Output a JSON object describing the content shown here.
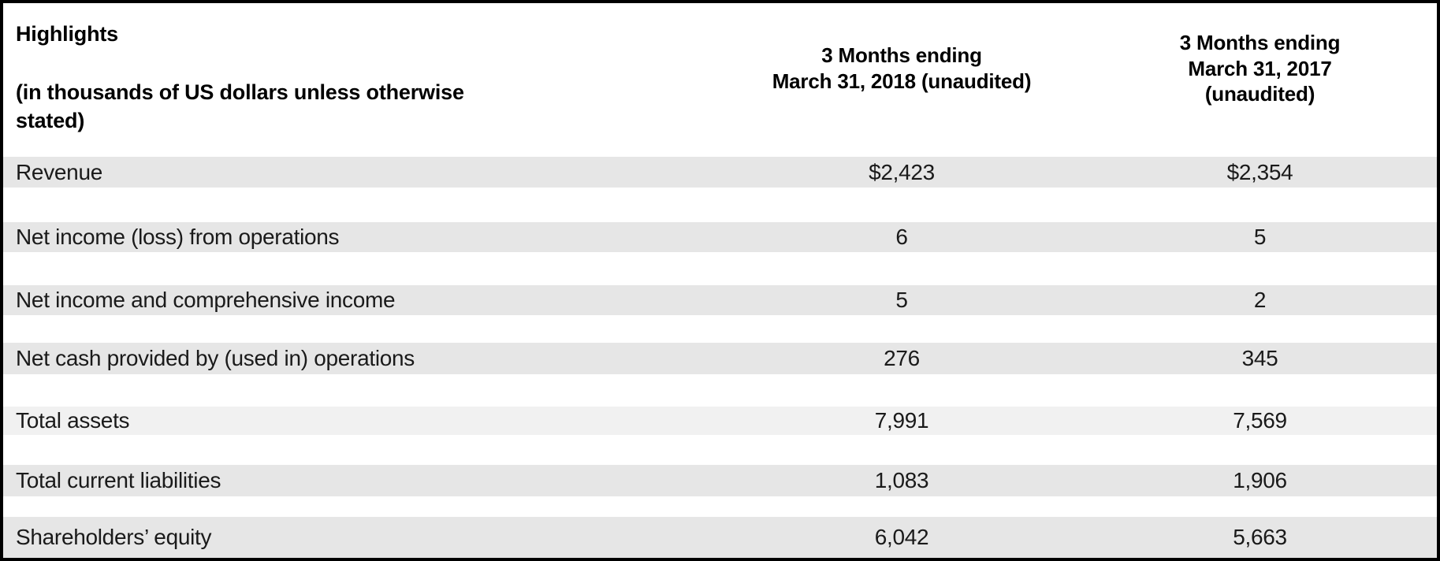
{
  "table": {
    "title": "Highlights",
    "subtitle": "(in thousands of US dollars unless otherwise\nstated)",
    "columns": [
      {
        "label": "3 Months ending\nMarch 31, 2018 (unaudited)"
      },
      {
        "label": "3 Months ending\nMarch 31, 2017\n(unaudited)"
      }
    ],
    "rows": [
      {
        "label": "Revenue",
        "values": [
          "$2,423",
          "$2,354"
        ]
      },
      {
        "label": "Net income (loss) from operations",
        "values": [
          "6",
          "5"
        ]
      },
      {
        "label": "Net income and comprehensive income",
        "values": [
          "5",
          "2"
        ]
      },
      {
        "label": "Net cash provided by (used in) operations",
        "values": [
          "276",
          "345"
        ]
      },
      {
        "label": "Total assets",
        "values": [
          "7,991",
          "7,569"
        ]
      },
      {
        "label": "Total current liabilities",
        "values": [
          "1,083",
          "1,906"
        ]
      },
      {
        "label": "Shareholders’ equity",
        "values": [
          "6,042",
          "5,663"
        ]
      }
    ]
  },
  "colors": {
    "row_band": "#e6e6e6",
    "row_band_light": "#f1f1f1",
    "border": "#000000",
    "background": "#ffffff",
    "text": "#1a1a1a"
  }
}
